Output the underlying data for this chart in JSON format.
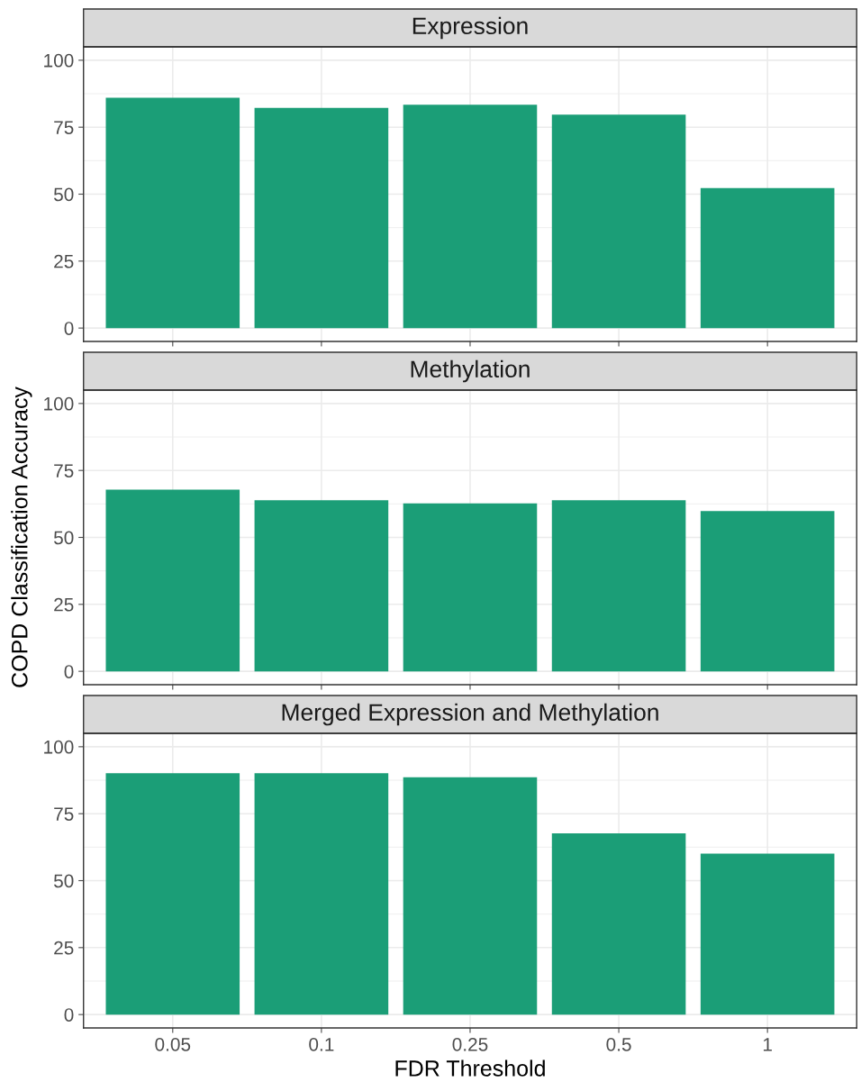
{
  "chart_data": [
    {
      "type": "bar",
      "title": "Expression",
      "categories": [
        "0.05",
        "0.1",
        "0.25",
        "0.5",
        "1"
      ],
      "values": [
        86.0,
        82.2,
        83.4,
        79.7,
        52.3
      ],
      "color": "#1b9e77",
      "ylim": [
        -5,
        105
      ],
      "yticks": [
        0,
        25,
        50,
        75,
        100
      ],
      "grid": true,
      "tick_labels": "y"
    },
    {
      "type": "bar",
      "title": "Methylation",
      "ylabel": "COPD Classification Accuracy",
      "categories": [
        "0.05",
        "0.1",
        "0.25",
        "0.5",
        "1"
      ],
      "values": [
        67.8,
        63.9,
        62.7,
        63.9,
        59.8
      ],
      "color": "#1b9e77",
      "ylim": [
        -5,
        105
      ],
      "yticks": [
        0,
        25,
        50,
        75,
        100
      ],
      "grid": true,
      "tick_labels": "y"
    },
    {
      "type": "bar",
      "title": "Merged Expression and Methylation",
      "xlabel": "FDR Threshold",
      "categories": [
        "0.05",
        "0.1",
        "0.25",
        "0.5",
        "1"
      ],
      "values": [
        90.1,
        90.1,
        88.6,
        67.7,
        60.1
      ],
      "color": "#1b9e77",
      "ylim": [
        -5,
        105
      ],
      "yticks": [
        0,
        25,
        50,
        75,
        100
      ],
      "grid": true
    }
  ]
}
